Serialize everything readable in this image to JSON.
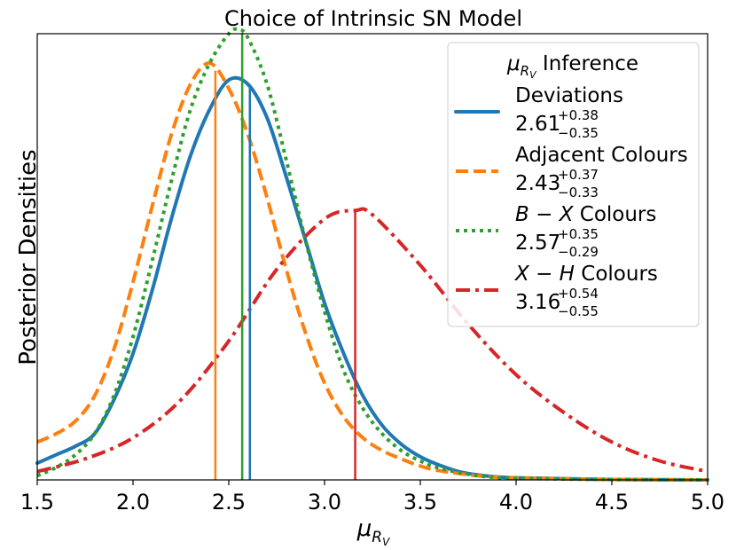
{
  "chart_data": {
    "type": "line",
    "title": "Choice of Intrinsic SN Model",
    "xlabel": "μ_{R_V}",
    "ylabel": "Posterior Densities",
    "xlim": [
      1.5,
      5.0
    ],
    "ylim": [
      0,
      1.06
    ],
    "xticks": [
      "1.5",
      "2.0",
      "2.5",
      "3.0",
      "3.5",
      "4.0",
      "4.5",
      "5.0"
    ],
    "legend": {
      "title": "μ_{R_V} Inference",
      "placement": "top-right"
    },
    "series": [
      {
        "name": "Deviations",
        "color": "#1f77b4",
        "style": "solid",
        "estimate": "2.61",
        "err_plus": "+0.38",
        "err_minus": "−0.35",
        "median": 2.61,
        "x": [
          1.5,
          1.6,
          1.7,
          1.8,
          1.9,
          2.0,
          2.1,
          2.2,
          2.3,
          2.4,
          2.5,
          2.6,
          2.7,
          2.8,
          2.9,
          3.0,
          3.1,
          3.2,
          3.3,
          3.4,
          3.5,
          3.6,
          3.7,
          3.8,
          3.9,
          4.0,
          4.25,
          4.5,
          5.0
        ],
        "y": [
          0.04,
          0.06,
          0.08,
          0.11,
          0.19,
          0.3,
          0.45,
          0.62,
          0.77,
          0.88,
          0.95,
          0.94,
          0.86,
          0.72,
          0.57,
          0.42,
          0.3,
          0.2,
          0.13,
          0.085,
          0.055,
          0.035,
          0.02,
          0.012,
          0.007,
          0.005,
          0.003,
          0.001,
          0.0
        ]
      },
      {
        "name": "Adjacent Colours",
        "color": "#ff7f0e",
        "style": "dashed",
        "estimate": "2.43",
        "err_plus": "+0.37",
        "err_minus": "−0.33",
        "median": 2.43,
        "x": [
          1.5,
          1.6,
          1.7,
          1.8,
          1.9,
          2.0,
          2.1,
          2.2,
          2.3,
          2.4,
          2.5,
          2.6,
          2.7,
          2.8,
          2.9,
          3.0,
          3.1,
          3.2,
          3.3,
          3.4,
          3.5,
          3.6,
          3.8,
          4.0,
          4.5,
          5.0
        ],
        "y": [
          0.09,
          0.11,
          0.14,
          0.2,
          0.31,
          0.47,
          0.65,
          0.82,
          0.94,
          0.99,
          0.93,
          0.82,
          0.67,
          0.5,
          0.35,
          0.23,
          0.15,
          0.1,
          0.07,
          0.05,
          0.033,
          0.022,
          0.01,
          0.005,
          0.001,
          0.0
        ]
      },
      {
        "name": "B − X Colours",
        "color": "#2ca02c",
        "style": "dotted",
        "estimate": "2.57",
        "err_plus": "+0.35",
        "err_minus": "−0.29",
        "median": 2.57,
        "x": [
          1.5,
          1.6,
          1.7,
          1.8,
          1.9,
          2.0,
          2.1,
          2.2,
          2.3,
          2.4,
          2.5,
          2.55,
          2.6,
          2.7,
          2.8,
          2.9,
          3.0,
          3.1,
          3.2,
          3.3,
          3.4,
          3.5,
          3.6,
          3.8,
          4.0,
          4.5,
          5.0
        ],
        "y": [
          0.01,
          0.03,
          0.06,
          0.11,
          0.2,
          0.34,
          0.52,
          0.71,
          0.88,
          0.99,
          1.06,
          1.07,
          1.05,
          0.94,
          0.76,
          0.57,
          0.4,
          0.26,
          0.17,
          0.11,
          0.07,
          0.045,
          0.028,
          0.01,
          0.004,
          0.001,
          0.0
        ]
      },
      {
        "name": "X − H Colours",
        "color": "#d62728",
        "style": "dashdot",
        "estimate": "3.16",
        "err_plus": "+0.54",
        "err_minus": "−0.55",
        "median": 3.16,
        "x": [
          1.5,
          1.75,
          2.0,
          2.25,
          2.5,
          2.75,
          3.0,
          3.16,
          3.25,
          3.5,
          3.75,
          4.0,
          4.25,
          4.5,
          4.75,
          5.0
        ],
        "y": [
          0.02,
          0.05,
          0.1,
          0.19,
          0.33,
          0.5,
          0.62,
          0.64,
          0.63,
          0.51,
          0.37,
          0.25,
          0.16,
          0.09,
          0.045,
          0.02
        ]
      }
    ]
  }
}
